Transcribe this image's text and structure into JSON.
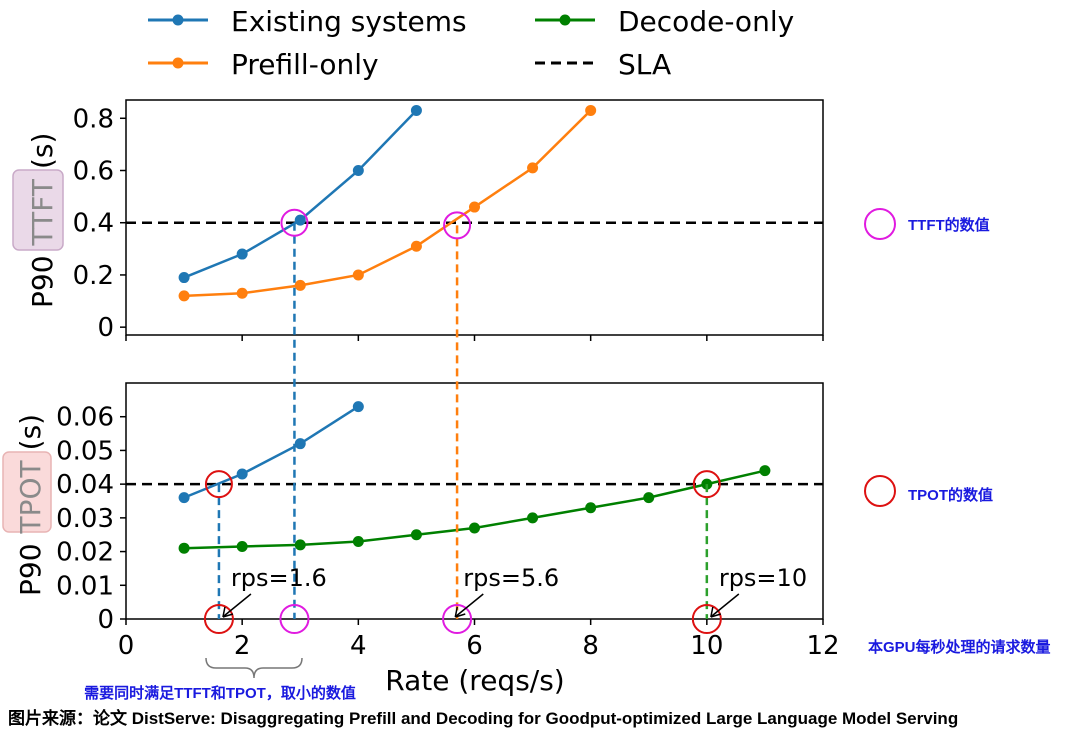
{
  "legend": [
    {
      "label": "Existing systems",
      "color": "#1f77b4",
      "style": "solid-marker"
    },
    {
      "label": "Decode-only",
      "color": "#008000",
      "style": "solid-marker"
    },
    {
      "label": "Prefill-only",
      "color": "#ff7f0e",
      "style": "solid-marker"
    },
    {
      "label": "SLA",
      "color": "#000000",
      "style": "dashed"
    }
  ],
  "chart_data": [
    {
      "type": "line",
      "ylabel_prefix": "P90",
      "ylabel_metric": "TTFT",
      "ylabel_suffix": "(s)",
      "xlim": [
        0,
        12
      ],
      "ylim": [
        -0.03,
        0.87
      ],
      "yticks": [
        0,
        0.2,
        0.4,
        0.6,
        0.8
      ],
      "ytick_labels": [
        "0",
        "0.2",
        "0.4",
        "0.6",
        "0.8"
      ],
      "sla": 0.4,
      "series": [
        {
          "name": "Existing systems",
          "color": "#1f77b4",
          "x": [
            1,
            2,
            3,
            4,
            5
          ],
          "y": [
            0.19,
            0.28,
            0.41,
            0.6,
            0.83
          ]
        },
        {
          "name": "Prefill-only",
          "color": "#ff7f0e",
          "x": [
            1,
            2,
            3,
            4,
            5,
            6,
            7,
            8
          ],
          "y": [
            0.12,
            0.13,
            0.16,
            0.2,
            0.31,
            0.46,
            0.61,
            0.83
          ]
        }
      ]
    },
    {
      "type": "line",
      "ylabel_prefix": "P90",
      "ylabel_metric": "TPOT",
      "ylabel_suffix": "(s)",
      "xlabel": "Rate (reqs/s)",
      "xlim": [
        0,
        12
      ],
      "ylim": [
        0,
        0.07
      ],
      "xticks": [
        0,
        2,
        4,
        6,
        8,
        10,
        12
      ],
      "xtick_labels": [
        "0",
        "2",
        "4",
        "6",
        "8",
        "10",
        "12"
      ],
      "yticks": [
        0,
        0.01,
        0.02,
        0.03,
        0.04,
        0.05,
        0.06
      ],
      "ytick_labels": [
        "0",
        "0.01",
        "0.02",
        "0.03",
        "0.04",
        "0.05",
        "0.06"
      ],
      "sla": 0.04,
      "series": [
        {
          "name": "Existing systems",
          "color": "#1f77b4",
          "x": [
            1,
            2,
            3,
            4
          ],
          "y": [
            0.036,
            0.043,
            0.052,
            0.063
          ]
        },
        {
          "name": "Decode-only",
          "color": "#008000",
          "x": [
            1,
            2,
            3,
            4,
            5,
            6,
            7,
            8,
            9,
            10,
            11
          ],
          "y": [
            0.021,
            0.0215,
            0.022,
            0.023,
            0.025,
            0.027,
            0.03,
            0.033,
            0.036,
            0.04,
            0.044
          ]
        }
      ]
    }
  ],
  "annotations": {
    "rps_labels": [
      {
        "text": "rps=1.6",
        "x": 1.6
      },
      {
        "text": "rps=5.6",
        "x": 5.6
      },
      {
        "text": "rps=10",
        "x": 10
      }
    ],
    "crossings": {
      "ttft": [
        {
          "x": 2.9,
          "y": 0.4,
          "color": "#e01be0"
        },
        {
          "x": 5.7,
          "y": 0.39,
          "color": "#e01be0"
        }
      ],
      "tpot": [
        {
          "x": 1.6,
          "y": 0.04,
          "color": "#dd1111"
        },
        {
          "x": 10,
          "y": 0.04,
          "color": "#dd1111"
        }
      ],
      "axis": [
        {
          "x": 1.6,
          "color": "#dd1111"
        },
        {
          "x": 2.9,
          "color": "#e01be0"
        },
        {
          "x": 5.7,
          "color": "#e01be0"
        },
        {
          "x": 10,
          "color": "#dd1111"
        }
      ]
    },
    "ttft_note": "TTFT的数值",
    "tpot_note": "TPOT的数值",
    "xaxis_note": "本GPU每秒处理的请求数量",
    "brace_note": "需要同时满足TTFT和TPOT，取小的数值",
    "source": "图片来源：论文 DistServe: Disaggregating Prefill and Decoding for Goodput-optimized Large Language Model Serving"
  }
}
